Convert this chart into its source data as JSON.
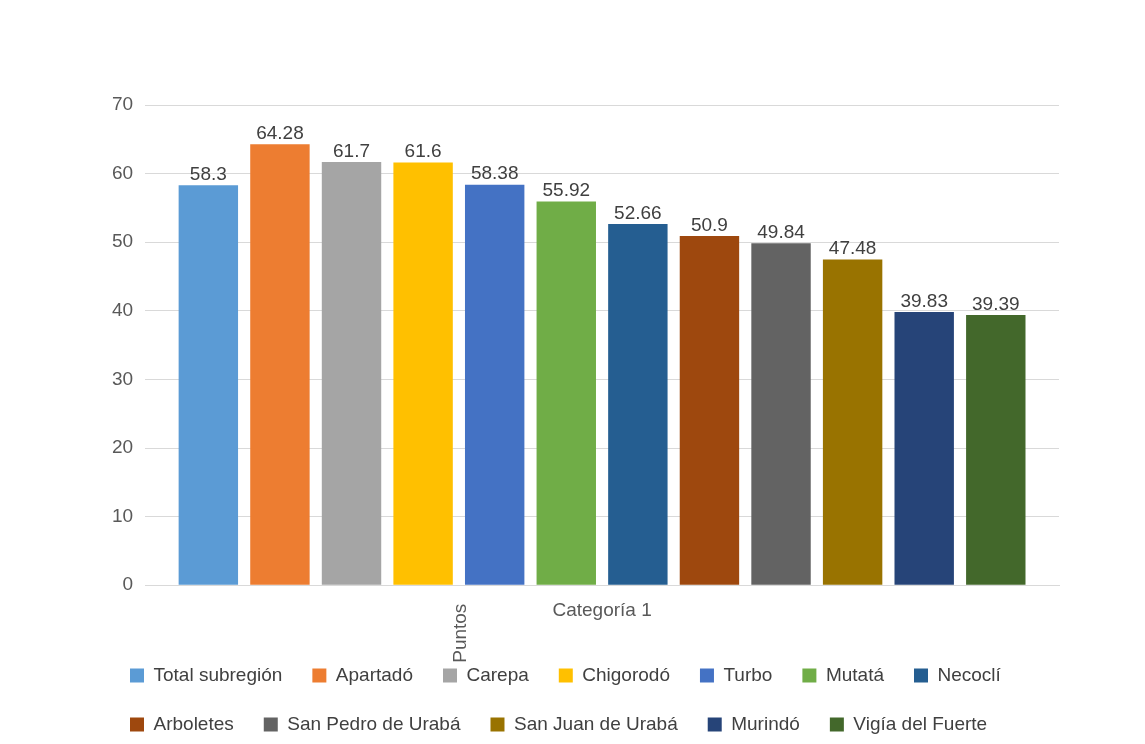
{
  "chart_data": {
    "type": "bar",
    "ylabel": "Puntos",
    "categories": [
      "Categoría 1"
    ],
    "series": [
      {
        "name": "Total subregión",
        "color": "#5b9bd5",
        "values": [
          58.3
        ]
      },
      {
        "name": "Apartadó",
        "color": "#ed7d31",
        "values": [
          64.28
        ]
      },
      {
        "name": "Carepa",
        "color": "#a5a5a5",
        "values": [
          61.7
        ]
      },
      {
        "name": "Chigorodó",
        "color": "#ffc000",
        "values": [
          61.6
        ]
      },
      {
        "name": "Turbo",
        "color": "#4472c4",
        "values": [
          58.38
        ]
      },
      {
        "name": "Mutatá",
        "color": "#70ad47",
        "values": [
          55.92
        ]
      },
      {
        "name": "Necoclí",
        "color": "#255e91",
        "values": [
          52.66
        ]
      },
      {
        "name": "Arboletes",
        "color": "#9e480e",
        "values": [
          50.9
        ]
      },
      {
        "name": "San Pedro de Urabá",
        "color": "#636363",
        "values": [
          49.84
        ]
      },
      {
        "name": "San Juan de Urabá",
        "color": "#997300",
        "values": [
          47.48
        ]
      },
      {
        "name": "Murindó",
        "color": "#264478",
        "values": [
          39.83
        ]
      },
      {
        "name": "Vigía del Fuerte",
        "color": "#43682b",
        "values": [
          39.39
        ]
      }
    ],
    "ylim": [
      0,
      70
    ],
    "yticks": [
      0,
      10,
      20,
      30,
      40,
      50,
      60,
      70
    ],
    "grid": "y",
    "legend": "bottom",
    "data_labels": true
  }
}
